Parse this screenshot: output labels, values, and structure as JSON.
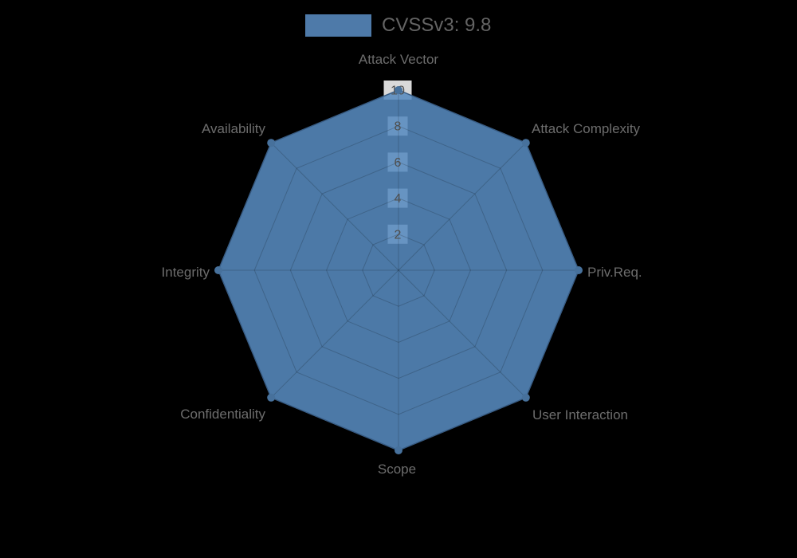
{
  "legend": {
    "label": "CVSSv3: 9.8"
  },
  "chart_data": {
    "type": "radar",
    "categories": [
      "Attack Vector",
      "Attack Complexity",
      "Priv.Req.",
      "User Interaction",
      "Scope",
      "Confidentiality",
      "Integrity",
      "Availability"
    ],
    "series": [
      {
        "name": "CVSSv3: 9.8",
        "values": [
          10,
          10,
          10,
          10,
          10,
          10,
          10,
          10
        ]
      }
    ],
    "radial_ticks": [
      2,
      4,
      6,
      8,
      10
    ],
    "rmin": 0,
    "rmax": 10,
    "grid_shape": "polygon",
    "grid_rings": 5,
    "legend_position": "top-center",
    "colors": {
      "background": "#000000",
      "series_fill": "#578abe",
      "series_fill_opacity": 0.88,
      "series_stroke": "#436d9b",
      "marker": "#47719c",
      "grid_line": "rgba(0,0,0,0.18)",
      "tick_backdrop": "rgba(255,255,255,0.85)",
      "tick_text": "#4f4f4f",
      "axis_label": "#6d6d6d",
      "legend_swatch": "#4e7aa9",
      "legend_text": "#646464"
    }
  }
}
